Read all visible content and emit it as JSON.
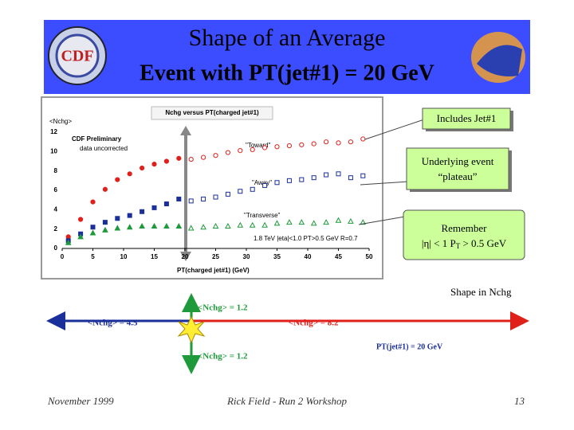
{
  "header": {
    "title_line1": "Shape of an Average",
    "title_line2": "Event with PT(jet#1) = 20 GeV"
  },
  "chart_data": {
    "type": "scatter",
    "title": "Nchg versus PT(charged jet#1)",
    "y_label": "<Nchg>",
    "x_label": "PT(charged jet#1)  (GeV)",
    "annotations": [
      "CDF Preliminary",
      "data uncorrected",
      "\"Toward\"",
      "\"Away\"",
      "\"Transverse\"",
      "1.8 TeV |eta|<1.0 PT>0.5 GeV  R=0.7"
    ],
    "x": [
      1,
      3,
      5,
      7,
      9,
      11,
      13,
      15,
      17,
      19,
      21,
      23,
      25,
      27,
      29,
      31,
      33,
      35,
      37,
      39,
      41,
      43,
      45,
      47,
      49
    ],
    "series": [
      {
        "name": "Toward",
        "color": "#e0201b",
        "values": [
          1.2,
          3.0,
          4.8,
          6.1,
          7.1,
          7.7,
          8.3,
          8.7,
          9.0,
          9.3,
          9.2,
          9.4,
          9.6,
          9.9,
          10.1,
          10.2,
          10.4,
          10.5,
          10.6,
          10.7,
          10.8,
          11.0,
          10.9,
          11.0,
          11.3
        ]
      },
      {
        "name": "Away",
        "color": "#1a2f9a",
        "values": [
          0.8,
          1.5,
          2.2,
          2.7,
          3.1,
          3.4,
          3.8,
          4.2,
          4.6,
          5.1,
          4.9,
          5.1,
          5.3,
          5.6,
          5.9,
          6.1,
          6.5,
          6.8,
          7.0,
          7.1,
          7.3,
          7.6,
          7.7,
          7.3,
          7.5
        ]
      },
      {
        "name": "Transverse",
        "color": "#1f9a3a",
        "values": [
          0.6,
          1.2,
          1.6,
          1.9,
          2.1,
          2.2,
          2.3,
          2.3,
          2.3,
          2.3,
          2.1,
          2.2,
          2.3,
          2.3,
          2.4,
          2.4,
          2.4,
          2.6,
          2.7,
          2.7,
          2.6,
          2.7,
          2.9,
          2.8,
          2.7
        ]
      }
    ],
    "xlim": [
      0,
      50
    ],
    "xticks": [
      0,
      5,
      10,
      15,
      20,
      25,
      30,
      35,
      40,
      45,
      50
    ],
    "ylim": [
      0,
      12
    ],
    "yticks": [
      0,
      2,
      4,
      6,
      8,
      10,
      12
    ]
  },
  "callouts": {
    "jet": "Includes Jet#1",
    "plateau": [
      "Underlying event",
      "“plateau”"
    ],
    "remember": "Remember",
    "cuts": [
      "|η| < 1 P",
      "T",
      " > 0.5 GeV"
    ],
    "shape": "Shape in Nchg"
  },
  "diagram": {
    "up": "<Nchg> = 1.2",
    "left": "<Nchg> = 4.5",
    "right": "<Nchg> = 8.2",
    "down": "<Nchg> = 1.2",
    "jet": "PT(jet#1) = 20 GeV"
  },
  "footer": {
    "date": "November 1999",
    "author": "Rick Field - Run 2 Workshop",
    "page": "13"
  }
}
